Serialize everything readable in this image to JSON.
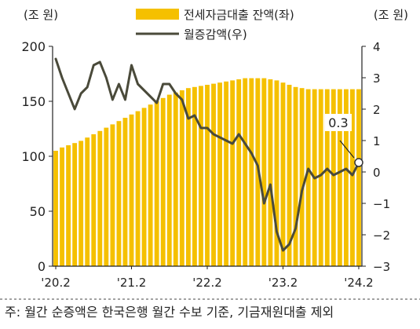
{
  "chart_data": {
    "type": "bar+line",
    "left_axis_unit": "(조 원)",
    "right_axis_unit": "(조 원)",
    "left_ylim": [
      0,
      200
    ],
    "left_ticks": [
      "0",
      "50",
      "100",
      "150",
      "200"
    ],
    "right_ylim": [
      -3,
      4
    ],
    "right_ticks": [
      "−3",
      "−2",
      "−1",
      "0",
      "1",
      "2",
      "3",
      "4"
    ],
    "x_tick_labels": [
      "'20.2",
      "'21.2",
      "'22.2",
      "'23.2",
      "'24.2"
    ],
    "series": [
      {
        "name": "전세자금대출 잔액(좌)",
        "type": "bar",
        "axis": "left",
        "color": "#f5c000",
        "values": [
          105,
          108,
          110,
          112,
          114,
          117,
          120,
          123,
          126,
          129,
          132,
          135,
          138,
          141,
          144,
          147,
          150,
          153,
          156,
          158,
          160,
          162,
          163,
          164,
          165,
          166,
          167,
          168,
          169,
          170,
          171,
          171,
          171,
          171,
          170,
          169,
          167,
          165,
          163,
          162,
          161,
          161,
          161,
          161,
          161,
          161,
          161,
          161,
          161
        ]
      },
      {
        "name": "월증감액(우)",
        "type": "line",
        "axis": "right",
        "color": "#4a4a3a",
        "values": [
          3.6,
          3.0,
          2.5,
          2.0,
          2.5,
          2.7,
          3.4,
          3.5,
          3.0,
          2.3,
          2.8,
          2.3,
          3.4,
          2.8,
          2.6,
          2.4,
          2.2,
          2.8,
          2.8,
          2.5,
          2.3,
          1.7,
          1.8,
          1.4,
          1.4,
          1.2,
          1.1,
          1.0,
          0.9,
          1.2,
          0.9,
          0.6,
          0.2,
          -1.0,
          -0.4,
          -1.9,
          -2.5,
          -2.3,
          -1.8,
          -0.6,
          0.1,
          -0.2,
          -0.1,
          0.1,
          -0.1,
          0.0,
          0.1,
          -0.1,
          0.3
        ]
      }
    ],
    "annotation": {
      "text": "0.3",
      "point_index": 48
    },
    "legend_position": "top-right"
  },
  "footnote": "주: 월간 순증액은 한국은행 월간 수보 기준, 기금재원대출 제외"
}
